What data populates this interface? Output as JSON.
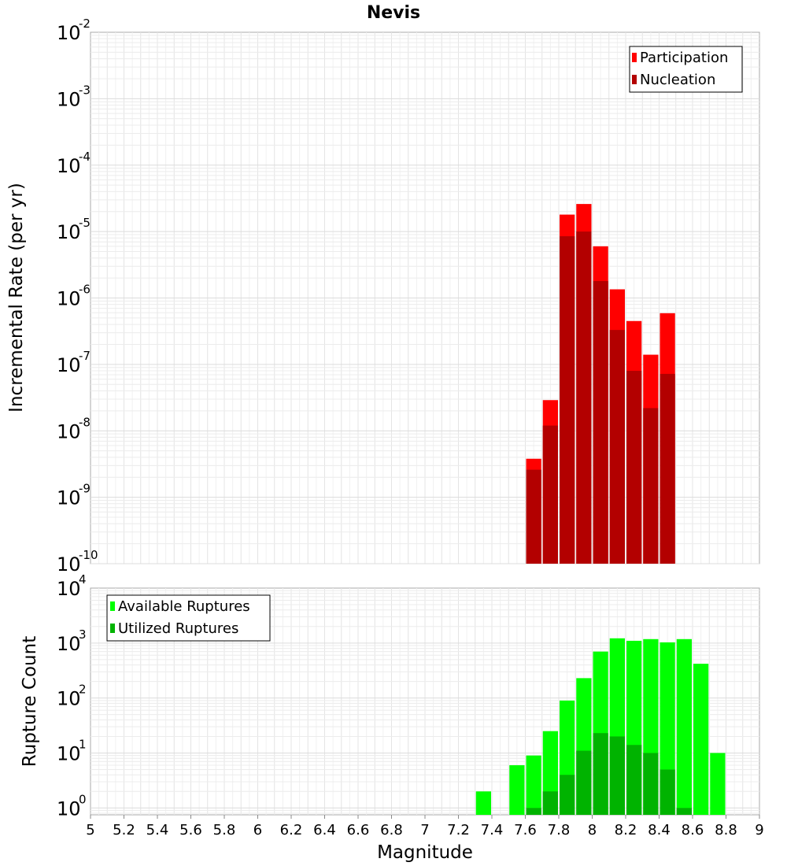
{
  "chart_data": [
    {
      "type": "bar",
      "title": "Nevis",
      "xlabel": "",
      "ylabel": "Incremental Rate (per yr)",
      "yscale": "log",
      "ylim": [
        1e-10,
        0.01
      ],
      "xlim": [
        5,
        9
      ],
      "ytick_exponents": [
        "-10",
        "-9",
        "-8",
        "-7",
        "-6",
        "-5",
        "-4",
        "-3",
        "-2"
      ],
      "bin_width": 0.1,
      "legend": {
        "position": "top-right",
        "entries": [
          "Participation",
          "Nucleation"
        ]
      },
      "colors": {
        "Participation": "#ff0000",
        "Nucleation": "#b30000"
      },
      "series": [
        {
          "name": "Participation",
          "x": [
            7.65,
            7.75,
            7.85,
            7.95,
            8.05,
            8.15,
            8.25,
            8.35,
            8.45
          ],
          "values": [
            3.8e-09,
            2.9e-08,
            1.8e-05,
            2.6e-05,
            6e-06,
            1.35e-06,
            4.5e-07,
            1.4e-07,
            5.9e-07
          ]
        },
        {
          "name": "Nucleation",
          "x": [
            7.65,
            7.75,
            7.85,
            7.95,
            8.05,
            8.15,
            8.25,
            8.35,
            8.45
          ],
          "values": [
            2.6e-09,
            1.2e-08,
            8.5e-06,
            1e-05,
            1.8e-06,
            3.3e-07,
            8e-08,
            2.2e-08,
            7.2e-08
          ]
        }
      ]
    },
    {
      "type": "bar",
      "title": "",
      "xlabel": "Magnitude",
      "ylabel": "Rupture Count",
      "yscale": "log",
      "ylim": [
        0.75,
        10000
      ],
      "xlim": [
        5,
        9
      ],
      "ytick_exponents": [
        "0",
        "1",
        "2",
        "3",
        "4"
      ],
      "xticks": [
        "5",
        "5.2",
        "5.4",
        "5.6",
        "5.8",
        "6",
        "6.2",
        "6.4",
        "6.6",
        "6.8",
        "7",
        "7.2",
        "7.4",
        "7.6",
        "7.8",
        "8",
        "8.2",
        "8.4",
        "8.6",
        "8.8",
        "9"
      ],
      "bin_width": 0.1,
      "legend": {
        "position": "top-left",
        "entries": [
          "Available Ruptures",
          "Utilized Ruptures"
        ]
      },
      "colors": {
        "Available Ruptures": "#00ff00",
        "Utilized Ruptures": "#00b300"
      },
      "series": [
        {
          "name": "Available Ruptures",
          "x": [
            7.35,
            7.55,
            7.65,
            7.75,
            7.85,
            7.95,
            8.05,
            8.15,
            8.25,
            8.35,
            8.45,
            8.55,
            8.65,
            8.75
          ],
          "values": [
            2,
            6,
            9,
            25,
            90,
            230,
            700,
            1220,
            1100,
            1180,
            1030,
            1180,
            420,
            10
          ]
        },
        {
          "name": "Utilized Ruptures",
          "x": [
            7.65,
            7.75,
            7.85,
            7.95,
            8.05,
            8.15,
            8.25,
            8.35,
            8.45,
            8.55
          ],
          "values": [
            1,
            2,
            4,
            11,
            23,
            20,
            14,
            10,
            5,
            1
          ]
        }
      ]
    }
  ]
}
